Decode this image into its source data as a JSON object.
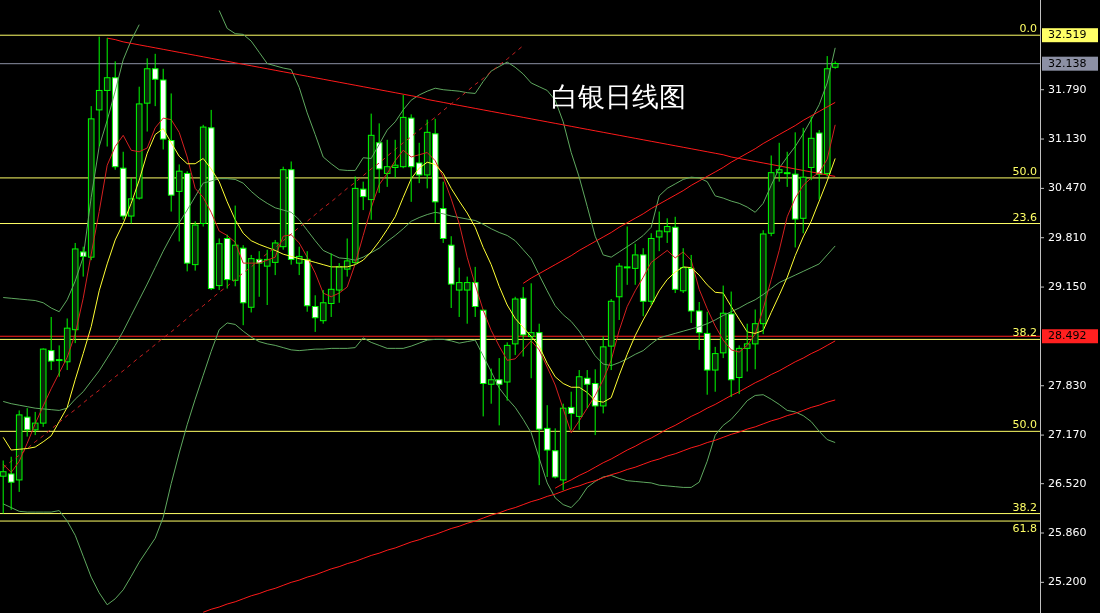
{
  "chart_data": {
    "type": "candlestick",
    "title": "白银日线图",
    "color": "#00ff00",
    "categories": [
      null,
      null,
      null,
      null,
      null,
      null,
      null,
      null,
      null,
      null,
      null,
      null,
      null,
      null,
      null,
      null,
      null,
      null,
      null,
      null,
      null,
      null,
      null,
      null,
      null,
      null,
      null,
      null,
      null,
      null,
      null,
      null,
      null,
      null,
      null,
      null,
      null,
      null,
      null,
      null,
      null,
      null,
      null,
      null,
      null,
      null,
      null,
      null,
      null,
      null,
      null,
      null,
      null,
      null,
      null,
      null,
      null,
      null,
      null,
      null,
      null,
      null,
      null,
      null,
      null,
      null,
      null,
      null,
      null,
      null,
      null,
      null,
      null,
      null,
      null,
      null,
      null,
      null,
      null,
      null,
      null,
      null,
      null,
      null,
      null,
      null,
      null,
      null,
      null,
      null,
      null,
      null,
      null,
      null,
      null,
      null,
      null,
      null,
      null,
      null,
      null,
      null,
      null,
      null,
      null
    ],
    "ohlc": [
      [
        26.62,
        26.83,
        26.12,
        26.68
      ],
      [
        26.65,
        26.88,
        26.17,
        26.54
      ],
      [
        26.57,
        27.5,
        26.41,
        27.44
      ],
      [
        27.41,
        27.53,
        27.15,
        27.24
      ],
      [
        27.24,
        27.48,
        27.17,
        27.33
      ],
      [
        27.33,
        28.33,
        27.28,
        28.32
      ],
      [
        28.3,
        28.75,
        28.04,
        28.16
      ],
      [
        28.18,
        28.37,
        27.95,
        28.18
      ],
      [
        28.15,
        28.73,
        28.04,
        28.6
      ],
      [
        28.58,
        29.74,
        28.4,
        29.66
      ],
      [
        29.62,
        29.69,
        29.29,
        29.56
      ],
      [
        29.55,
        31.57,
        29.51,
        31.4
      ],
      [
        31.52,
        32.5,
        31.03,
        31.78
      ],
      [
        31.78,
        32.48,
        31.03,
        31.95
      ],
      [
        31.95,
        32.17,
        30.72,
        30.76
      ],
      [
        30.74,
        30.96,
        30.05,
        30.1
      ],
      [
        30.1,
        30.61,
        30.0,
        30.33
      ],
      [
        30.34,
        31.83,
        30.32,
        31.6
      ],
      [
        31.61,
        32.21,
        31.23,
        32.07
      ],
      [
        32.07,
        32.27,
        31.57,
        31.93
      ],
      [
        31.92,
        32.07,
        30.99,
        31.13
      ],
      [
        31.11,
        31.74,
        30.16,
        30.38
      ],
      [
        30.43,
        30.79,
        29.76,
        30.7
      ],
      [
        30.67,
        30.7,
        29.36,
        29.47
      ],
      [
        29.45,
        30.03,
        29.37,
        29.98
      ],
      [
        30.0,
        31.32,
        29.96,
        31.29
      ],
      [
        31.28,
        31.52,
        29.11,
        29.13
      ],
      [
        29.17,
        29.8,
        29.11,
        29.73
      ],
      [
        29.8,
        29.85,
        29.13,
        29.25
      ],
      [
        29.24,
        30.24,
        29.16,
        29.71
      ],
      [
        29.67,
        29.71,
        28.64,
        28.94
      ],
      [
        28.88,
        29.58,
        28.81,
        29.53
      ],
      [
        29.52,
        29.63,
        29.02,
        29.47
      ],
      [
        29.43,
        29.65,
        28.91,
        29.52
      ],
      [
        29.48,
        29.78,
        29.31,
        29.74
      ],
      [
        29.69,
        30.76,
        29.65,
        30.72
      ],
      [
        30.72,
        30.83,
        29.45,
        29.52
      ],
      [
        29.47,
        29.69,
        29.31,
        29.56
      ],
      [
        29.52,
        29.63,
        28.82,
        28.9
      ],
      [
        28.89,
        29.04,
        28.55,
        28.74
      ],
      [
        28.7,
        29.11,
        28.66,
        28.94
      ],
      [
        28.93,
        29.6,
        28.75,
        29.12
      ],
      [
        29.11,
        29.47,
        28.94,
        29.42
      ],
      [
        29.39,
        29.8,
        29.29,
        29.5
      ],
      [
        29.48,
        30.63,
        29.45,
        30.47
      ],
      [
        30.46,
        30.56,
        30.18,
        30.36
      ],
      [
        30.32,
        31.47,
        30.05,
        31.18
      ],
      [
        31.08,
        31.34,
        30.41,
        30.73
      ],
      [
        30.67,
        31.12,
        30.49,
        30.76
      ],
      [
        30.75,
        31.12,
        30.61,
        30.78
      ],
      [
        30.76,
        31.72,
        30.74,
        31.42
      ],
      [
        31.41,
        31.46,
        30.29,
        30.76
      ],
      [
        30.81,
        31.08,
        30.54,
        30.65
      ],
      [
        30.65,
        31.39,
        30.47,
        31.22
      ],
      [
        31.2,
        31.4,
        30.01,
        30.29
      ],
      [
        30.2,
        30.56,
        29.74,
        29.8
      ],
      [
        29.71,
        29.83,
        28.87,
        29.19
      ],
      [
        29.11,
        29.41,
        28.75,
        29.21
      ],
      [
        29.11,
        29.29,
        28.66,
        29.21
      ],
      [
        29.21,
        29.42,
        28.75,
        28.89
      ],
      [
        28.84,
        28.85,
        27.42,
        27.86
      ],
      [
        27.85,
        28.06,
        27.59,
        27.91
      ],
      [
        27.91,
        28.2,
        27.3,
        27.85
      ],
      [
        27.88,
        28.41,
        27.63,
        28.37
      ],
      [
        28.39,
        29.02,
        28.24,
        28.99
      ],
      [
        29.0,
        29.15,
        28.22,
        28.51
      ],
      [
        28.49,
        29.2,
        27.93,
        28.54
      ],
      [
        28.54,
        28.66,
        26.5,
        27.25
      ],
      [
        27.26,
        27.57,
        26.61,
        26.97
      ],
      [
        26.96,
        27.26,
        26.59,
        26.61
      ],
      [
        26.57,
        27.59,
        26.43,
        27.53
      ],
      [
        27.54,
        27.75,
        27.24,
        27.46
      ],
      [
        27.42,
        28.04,
        27.24,
        27.95
      ],
      [
        27.93,
        28.04,
        27.53,
        27.85
      ],
      [
        27.86,
        28.05,
        27.17,
        27.56
      ],
      [
        27.56,
        28.49,
        27.46,
        28.35
      ],
      [
        28.36,
        28.99,
        28.04,
        28.96
      ],
      [
        29.02,
        29.47,
        28.71,
        29.43
      ],
      [
        29.42,
        29.96,
        29.18,
        29.42
      ],
      [
        29.4,
        29.73,
        29.18,
        29.58
      ],
      [
        29.58,
        29.67,
        28.76,
        28.96
      ],
      [
        28.96,
        29.87,
        28.91,
        29.8
      ],
      [
        29.82,
        30.16,
        29.63,
        29.9
      ],
      [
        29.89,
        30.07,
        29.74,
        29.96
      ],
      [
        29.95,
        30.09,
        29.07,
        29.12
      ],
      [
        29.1,
        29.67,
        29.07,
        29.41
      ],
      [
        29.4,
        29.58,
        28.67,
        28.83
      ],
      [
        28.83,
        28.95,
        28.31,
        28.54
      ],
      [
        28.53,
        28.82,
        27.71,
        28.04
      ],
      [
        28.04,
        28.35,
        27.75,
        28.26
      ],
      [
        28.27,
        29.17,
        28.2,
        28.8
      ],
      [
        28.79,
        29.09,
        27.68,
        27.91
      ],
      [
        27.94,
        28.37,
        27.72,
        28.33
      ],
      [
        28.33,
        28.66,
        28.02,
        28.39
      ],
      [
        28.39,
        28.85,
        28.05,
        28.66
      ],
      [
        28.66,
        29.91,
        28.52,
        29.86
      ],
      [
        29.87,
        30.91,
        29.83,
        30.68
      ],
      [
        30.68,
        31.08,
        30.56,
        30.72
      ],
      [
        30.68,
        30.96,
        30.49,
        30.68
      ],
      [
        30.66,
        31.22,
        29.68,
        30.06
      ],
      [
        30.07,
        31.28,
        29.87,
        30.62
      ],
      [
        30.75,
        31.43,
        30.58,
        31.14
      ],
      [
        31.21,
        31.25,
        30.32,
        30.66
      ],
      [
        30.67,
        32.24,
        30.63,
        32.07
      ],
      [
        32.09,
        32.17,
        32.07,
        32.14
      ]
    ],
    "ylim": [
      24.79,
      32.99
    ],
    "tick_labels": "y",
    "yticks": [
      {
        "value": 31.79,
        "label": "31.790"
      },
      {
        "value": 31.13,
        "label": "31.130"
      },
      {
        "value": 30.47,
        "label": "30.470"
      },
      {
        "value": 29.81,
        "label": "29.810"
      },
      {
        "value": 29.15,
        "label": "29.150"
      },
      {
        "value": 27.83,
        "label": "27.830"
      },
      {
        "value": 27.17,
        "label": "27.170"
      },
      {
        "value": 26.52,
        "label": "26.520"
      },
      {
        "value": 25.86,
        "label": "25.860"
      },
      {
        "value": 25.2,
        "label": "25.200"
      }
    ],
    "series": [
      {
        "type": "line",
        "color": "#5fa85f",
        "values": [
          29.01,
          29.0,
          28.99,
          28.98,
          28.97,
          28.94,
          28.87,
          28.82,
          28.98,
          29.23,
          29.55,
          30.35,
          31.03,
          31.38,
          31.77,
          32.19,
          32.45,
          32.66,
          null,
          null,
          null,
          null,
          null,
          null,
          null,
          null,
          null,
          32.85,
          32.61,
          32.54,
          32.53,
          32.44,
          32.29,
          32.14,
          32.11,
          32.08,
          32.06,
          31.82,
          31.48,
          31.19,
          30.89,
          30.8,
          30.72,
          30.71,
          30.71,
          30.88,
          30.87,
          31.06,
          31.25,
          31.36,
          31.52,
          31.65,
          31.72,
          31.77,
          31.81,
          31.79,
          31.78,
          31.77,
          31.75,
          31.74,
          31.9,
          32.04,
          32.1,
          32.16,
          32.09,
          32.0,
          31.88,
          31.83,
          31.78,
          31.65,
          31.36,
          30.95,
          30.62,
          30.23,
          29.83,
          29.58,
          29.55,
          29.62,
          29.69,
          29.76,
          29.84,
          29.95,
          30.37,
          30.47,
          30.53,
          30.59,
          30.62,
          30.61,
          30.56,
          30.37,
          30.34,
          30.3,
          30.27,
          30.22,
          30.15,
          30.27,
          30.51,
          30.74,
          30.89,
          31.03,
          31.2,
          31.39,
          31.59,
          31.88,
          32.35
        ]
      },
      {
        "type": "line",
        "color": "#5fa85f",
        "values": [
          27.62,
          27.59,
          27.57,
          27.55,
          27.53,
          27.52,
          27.51,
          27.5,
          27.53,
          27.65,
          27.75,
          27.89,
          28.03,
          28.2,
          28.37,
          28.56,
          28.77,
          28.98,
          29.19,
          29.41,
          29.63,
          29.83,
          30.01,
          30.18,
          30.36,
          30.54,
          30.57,
          30.6,
          30.6,
          30.59,
          30.54,
          30.43,
          30.34,
          30.27,
          30.21,
          30.18,
          30.15,
          30.05,
          29.91,
          29.77,
          29.64,
          29.59,
          29.54,
          29.53,
          29.51,
          29.55,
          29.61,
          29.67,
          29.76,
          29.84,
          29.93,
          30.03,
          30.08,
          30.12,
          30.15,
          30.13,
          30.1,
          30.08,
          30.06,
          30.04,
          29.99,
          29.93,
          29.88,
          29.84,
          29.77,
          29.65,
          29.53,
          29.31,
          29.1,
          28.9,
          28.78,
          28.69,
          28.56,
          28.4,
          28.23,
          28.12,
          28.1,
          28.14,
          28.19,
          28.25,
          28.3,
          28.39,
          28.47,
          28.5,
          28.53,
          28.56,
          28.59,
          28.62,
          28.66,
          28.71,
          28.77,
          28.82,
          28.87,
          28.93,
          28.98,
          29.05,
          29.13,
          29.21,
          29.26,
          29.31,
          29.36,
          29.41,
          29.46,
          29.58,
          29.7
        ]
      },
      {
        "type": "line",
        "color": "#5fa85f",
        "values": [
          26.25,
          26.2,
          26.15,
          26.14,
          26.14,
          26.14,
          26.14,
          26.16,
          26.02,
          25.83,
          25.55,
          25.27,
          25.06,
          24.9,
          24.98,
          25.1,
          25.28,
          25.47,
          25.63,
          25.79,
          26.07,
          26.52,
          26.93,
          27.31,
          27.65,
          27.97,
          28.29,
          28.58,
          28.67,
          28.65,
          28.56,
          28.48,
          28.42,
          28.39,
          28.37,
          28.34,
          28.31,
          28.3,
          28.31,
          28.32,
          28.32,
          28.33,
          28.33,
          28.33,
          28.34,
          28.47,
          28.41,
          28.37,
          28.33,
          28.33,
          28.33,
          28.36,
          28.4,
          28.44,
          28.45,
          28.45,
          28.43,
          28.4,
          28.42,
          28.44,
          28.23,
          28.02,
          27.8,
          27.66,
          27.54,
          27.38,
          27.2,
          26.86,
          26.53,
          26.33,
          26.24,
          26.2,
          26.31,
          26.47,
          26.55,
          26.61,
          26.63,
          26.59,
          26.56,
          26.55,
          26.54,
          26.53,
          26.5,
          26.49,
          26.48,
          26.47,
          26.47,
          26.54,
          26.82,
          27.17,
          27.3,
          27.38,
          27.5,
          27.63,
          27.7,
          27.71,
          27.65,
          27.58,
          27.5,
          27.48,
          27.43,
          27.35,
          27.22,
          27.11,
          27.07
        ]
      },
      {
        "type": "line",
        "color": "#d42020",
        "values": [
          26.78,
          26.67,
          26.82,
          27.06,
          27.32,
          27.56,
          27.79,
          28.0,
          28.21,
          28.52,
          29.0,
          29.59,
          30.16,
          30.78,
          31.03,
          31.18,
          30.98,
          30.96,
          31.01,
          31.28,
          31.41,
          31.39,
          31.22,
          30.89,
          30.47,
          30.35,
          30.15,
          29.9,
          29.84,
          29.75,
          29.47,
          29.47,
          29.47,
          29.51,
          29.55,
          29.83,
          29.85,
          29.74,
          29.55,
          29.34,
          29.07,
          29.02,
          29.07,
          29.15,
          29.46,
          29.84,
          30.21,
          30.52,
          30.67,
          30.84,
          30.98,
          30.89,
          30.92,
          30.95,
          30.84,
          30.62,
          30.33,
          30.0,
          29.55,
          29.18,
          28.84,
          28.57,
          28.36,
          28.17,
          28.19,
          28.31,
          28.43,
          28.31,
          28.08,
          27.84,
          27.52,
          27.2,
          27.36,
          27.53,
          27.7,
          27.91,
          28.17,
          28.57,
          28.89,
          29.1,
          29.28,
          29.48,
          29.56,
          29.64,
          29.54,
          29.62,
          29.51,
          29.12,
          28.86,
          28.63,
          28.44,
          28.31,
          28.28,
          28.37,
          28.52,
          28.86,
          29.25,
          29.64,
          30.09,
          30.34,
          30.51,
          30.61,
          30.68,
          30.86,
          31.32
        ]
      },
      {
        "type": "line",
        "color": "#ffff33",
        "values": [
          27.14,
          26.97,
          26.98,
          26.99,
          27.01,
          27.08,
          27.16,
          27.35,
          27.54,
          27.91,
          28.26,
          28.62,
          29.1,
          29.46,
          29.78,
          30.0,
          30.27,
          30.58,
          30.94,
          31.19,
          31.27,
          31.08,
          30.9,
          30.8,
          30.8,
          30.87,
          30.73,
          30.56,
          30.29,
          30.05,
          29.87,
          29.77,
          29.72,
          29.68,
          29.64,
          29.59,
          29.56,
          29.53,
          29.51,
          29.48,
          29.45,
          29.42,
          29.42,
          29.42,
          29.45,
          29.51,
          29.62,
          29.76,
          29.92,
          30.09,
          30.35,
          30.6,
          30.74,
          30.82,
          30.79,
          30.67,
          30.47,
          30.3,
          30.14,
          29.95,
          29.68,
          29.45,
          29.16,
          28.91,
          28.73,
          28.61,
          28.49,
          28.36,
          28.13,
          27.95,
          27.86,
          27.81,
          27.81,
          27.74,
          27.63,
          27.61,
          27.67,
          27.97,
          28.25,
          28.5,
          28.71,
          28.9,
          29.1,
          29.25,
          29.35,
          29.42,
          29.41,
          29.31,
          29.18,
          29.08,
          29.07,
          28.89,
          28.72,
          28.55,
          28.53,
          28.57,
          28.81,
          29.04,
          29.28,
          29.57,
          29.82,
          30.03,
          30.3,
          30.57,
          30.87
        ]
      },
      {
        "type": "line",
        "color": "#ff1a1a",
        "values": [
          null,
          null,
          null,
          null,
          null,
          null,
          null,
          null,
          null,
          null,
          null,
          null,
          null,
          32.48,
          32.46,
          32.43,
          32.41,
          32.39,
          32.37,
          32.35,
          32.33,
          32.31,
          32.29,
          32.27,
          32.25,
          32.23,
          32.21,
          32.19,
          32.17,
          32.15,
          32.13,
          32.11,
          32.09,
          32.07,
          32.05,
          32.03,
          32.01,
          31.99,
          31.97,
          31.95,
          31.93,
          31.91,
          31.89,
          31.87,
          31.85,
          31.83,
          31.81,
          31.79,
          31.77,
          31.75,
          31.73,
          31.71,
          31.69,
          31.66,
          31.64,
          31.62,
          31.6,
          31.58,
          31.56,
          31.54,
          31.52,
          31.5,
          31.48,
          31.46,
          31.44,
          31.42,
          31.4,
          31.38,
          31.36,
          31.34,
          31.32,
          31.3,
          31.28,
          31.26,
          31.24,
          31.22,
          31.2,
          31.18,
          31.16,
          31.14,
          31.12,
          31.1,
          31.08,
          31.06,
          31.04,
          31.02,
          31.0,
          30.98,
          30.96,
          30.94,
          30.92,
          30.89,
          30.87,
          30.85,
          30.83,
          30.81,
          30.79,
          30.77,
          30.75,
          30.73,
          30.71,
          30.69,
          30.67,
          30.65,
          30.63
        ]
      },
      {
        "type": "line",
        "color": "#ff1a1a",
        "values": [
          null,
          null,
          null,
          null,
          null,
          null,
          null,
          null,
          null,
          null,
          null,
          null,
          null,
          null,
          null,
          null,
          null,
          null,
          null,
          null,
          null,
          null,
          null,
          null,
          null,
          null,
          null,
          null,
          null,
          null,
          null,
          null,
          null,
          null,
          null,
          null,
          null,
          null,
          null,
          null,
          null,
          null,
          null,
          null,
          null,
          null,
          null,
          null,
          null,
          null,
          null,
          null,
          null,
          null,
          null,
          null,
          null,
          null,
          null,
          null,
          null,
          null,
          null,
          null,
          null,
          29.2,
          29.27,
          29.33,
          29.39,
          29.45,
          29.51,
          29.57,
          29.64,
          29.7,
          29.76,
          29.82,
          29.88,
          29.95,
          30.01,
          30.07,
          30.13,
          30.2,
          30.26,
          30.32,
          30.38,
          30.44,
          30.51,
          30.57,
          30.63,
          30.69,
          30.75,
          30.82,
          30.88,
          30.94,
          31.0,
          31.07,
          31.13,
          31.19,
          31.25,
          31.31,
          31.38,
          31.44,
          31.5,
          31.56,
          31.62
        ]
      },
      {
        "type": "line",
        "color": "#ff1a1a",
        "values": [
          null,
          null,
          null,
          null,
          null,
          null,
          null,
          null,
          null,
          null,
          null,
          null,
          null,
          null,
          null,
          null,
          null,
          null,
          null,
          null,
          null,
          null,
          null,
          null,
          null,
          null,
          null,
          null,
          null,
          null,
          null,
          null,
          null,
          null,
          null,
          null,
          null,
          null,
          null,
          null,
          null,
          null,
          null,
          null,
          null,
          null,
          null,
          null,
          null,
          null,
          null,
          null,
          null,
          null,
          null,
          null,
          null,
          null,
          null,
          null,
          null,
          null,
          null,
          null,
          null,
          null,
          null,
          null,
          null,
          26.46,
          26.52,
          26.57,
          26.63,
          26.68,
          26.74,
          26.8,
          26.85,
          26.91,
          26.97,
          27.02,
          27.08,
          27.13,
          27.19,
          27.25,
          27.3,
          27.36,
          27.42,
          27.47,
          27.53,
          27.58,
          27.64,
          27.7,
          27.75,
          27.81,
          27.87,
          27.92,
          27.98,
          28.03,
          28.09,
          28.15,
          28.2,
          28.26,
          28.31,
          28.37,
          28.43
        ]
      },
      {
        "type": "line",
        "color": "#ff1a1a",
        "values": [
          null,
          null,
          null,
          null,
          null,
          null,
          null,
          null,
          null,
          null,
          null,
          null,
          null,
          null,
          null,
          null,
          null,
          null,
          null,
          null,
          null,
          null,
          null,
          null,
          null,
          24.8,
          24.84,
          24.87,
          24.91,
          24.94,
          24.98,
          25.02,
          25.05,
          25.09,
          25.12,
          25.16,
          25.2,
          25.23,
          25.27,
          25.3,
          25.34,
          25.38,
          25.41,
          25.45,
          25.48,
          25.52,
          25.56,
          25.59,
          25.63,
          25.66,
          25.7,
          25.74,
          25.77,
          25.81,
          25.84,
          25.88,
          25.92,
          25.95,
          25.99,
          26.02,
          26.06,
          26.1,
          26.13,
          26.17,
          26.2,
          26.24,
          26.28,
          26.31,
          26.35,
          26.38,
          26.42,
          26.46,
          26.49,
          26.53,
          26.56,
          26.6,
          26.64,
          26.67,
          26.71,
          26.74,
          26.78,
          26.82,
          26.85,
          26.89,
          26.92,
          26.96,
          27.0,
          27.03,
          27.07,
          27.1,
          27.14,
          27.18,
          27.21,
          27.25,
          27.28,
          27.32,
          27.36,
          27.39,
          27.43,
          27.46,
          27.5,
          27.54,
          27.57,
          27.61,
          27.64
        ]
      },
      {
        "type": "line",
        "color": "#c82020",
        "line_style": "dashed",
        "values": [
          26.73,
          26.82,
          26.9,
          26.99,
          27.08,
          27.16,
          27.25,
          27.34,
          27.43,
          27.51,
          27.6,
          27.69,
          27.77,
          27.86,
          27.95,
          28.03,
          28.12,
          28.21,
          28.29,
          28.38,
          28.47,
          28.55,
          28.64,
          28.73,
          28.82,
          28.9,
          28.99,
          29.08,
          29.16,
          29.25,
          29.34,
          29.42,
          29.51,
          29.6,
          29.68,
          29.77,
          29.86,
          29.95,
          30.03,
          30.12,
          30.21,
          30.29,
          30.38,
          30.47,
          30.55,
          30.64,
          30.73,
          30.81,
          30.9,
          30.99,
          31.08,
          31.16,
          31.25,
          31.34,
          31.42,
          31.51,
          31.6,
          31.68,
          31.77,
          31.86,
          31.94,
          32.03,
          32.12,
          32.2,
          32.29,
          32.38,
          null,
          null,
          null,
          null,
          null,
          null,
          null,
          null,
          null,
          null,
          null,
          null,
          null,
          null,
          null,
          null,
          null,
          null,
          null,
          null,
          null,
          null,
          null,
          null,
          null,
          null,
          null,
          null,
          null,
          null,
          null,
          null,
          null,
          null,
          null,
          null,
          null,
          null,
          null
        ]
      }
    ],
    "ref_lines": [
      {
        "axis": "y",
        "value": 32.519,
        "label": "32.519",
        "color": "#ffff66"
      },
      {
        "axis": "y",
        "value": 32.138,
        "label": "32.138",
        "color": "#8c90a4"
      },
      {
        "axis": "y",
        "value": 30.61,
        "color": "#ffff66"
      },
      {
        "axis": "y",
        "value": 30.0,
        "color": "#ffff66"
      },
      {
        "axis": "y",
        "value": 28.492,
        "label": "28.492",
        "color": "#ff2020"
      },
      {
        "axis": "y",
        "value": 28.45,
        "color": "#ffff66"
      },
      {
        "axis": "y",
        "value": 27.22,
        "color": "#ffff66"
      },
      {
        "axis": "y",
        "value": 26.12,
        "color": "#ffff66"
      },
      {
        "axis": "y",
        "value": 26.02,
        "color": "#ffff66"
      }
    ],
    "annotations": [
      {
        "text": "0.0",
        "y": 32.519
      },
      {
        "text": "50.0",
        "y": 30.61
      },
      {
        "text": "23.6",
        "y": 30.0
      },
      {
        "text": "38.2",
        "y": 28.45
      },
      {
        "text": "50.0",
        "y": 27.22
      },
      {
        "text": "38.2",
        "y": 26.12
      },
      {
        "text": "61.8",
        "y": 26.02
      }
    ]
  }
}
